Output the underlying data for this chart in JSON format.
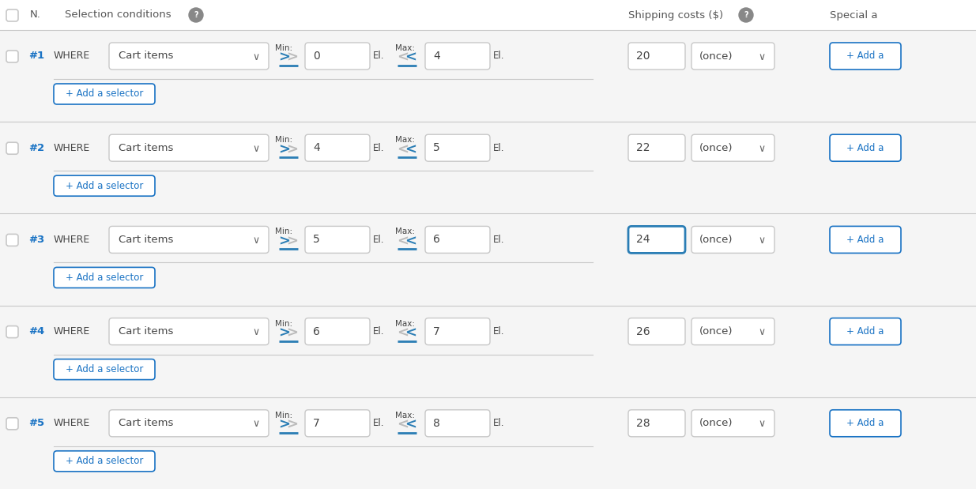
{
  "bg_color": "#f0f0f0",
  "white": "#ffffff",
  "border_color": "#c8c8c8",
  "blue_border": "#2a7db5",
  "text_dark": "#444444",
  "text_blue": "#1a73c4",
  "text_medium": "#666666",
  "text_light": "#999999",
  "header_text_color": "#555555",
  "symbol_blue": "#2a7db5",
  "symbol_gray": "#bbbbbb",
  "title": "N.",
  "col_selection": "Selection conditions",
  "col_shipping": "Shipping costs ($)",
  "col_special": "Special a",
  "rows": [
    {
      "id": "#1",
      "min_val": "0",
      "max_val": "4",
      "cost": "20",
      "highlight": false
    },
    {
      "id": "#2",
      "min_val": "4",
      "max_val": "5",
      "cost": "22",
      "highlight": false
    },
    {
      "id": "#3",
      "min_val": "5",
      "max_val": "6",
      "cost": "24",
      "highlight": true
    },
    {
      "id": "#4",
      "min_val": "6",
      "max_val": "7",
      "cost": "26",
      "highlight": false
    },
    {
      "id": "#5",
      "min_val": "7",
      "max_val": "8",
      "cost": "28",
      "highlight": false
    }
  ],
  "dropdown_label": "Cart items",
  "freq_label": "(once)",
  "add_selector_label": "+ Add a selector",
  "add_label": "+ Add a",
  "where_label": "WHERE",
  "min_label": "Min:",
  "max_label": "Max:",
  "el_label": "El.",
  "figure_width": 12.35,
  "figure_height": 6.19,
  "dpi": 100
}
